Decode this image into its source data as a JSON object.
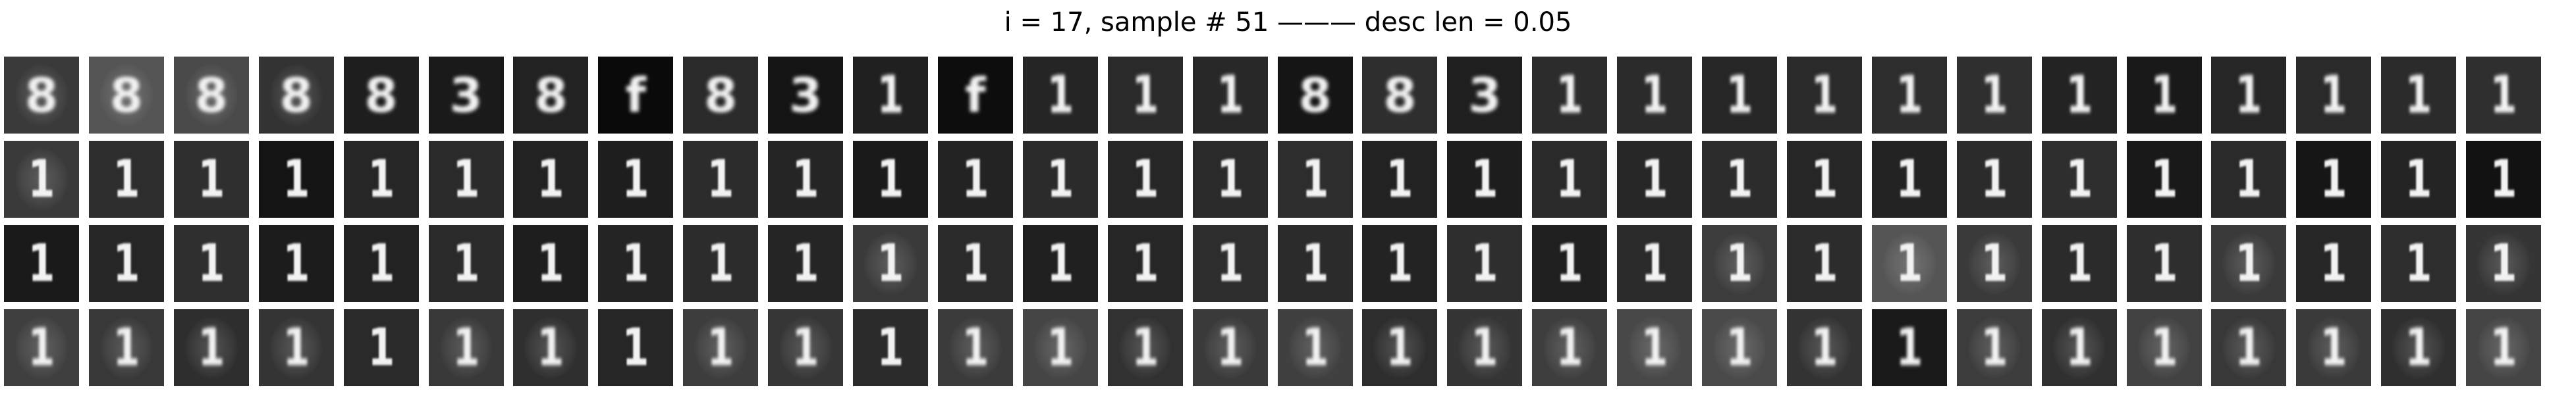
{
  "figure": {
    "title": "i = 17, sample # 51 ——— desc len = 0.05",
    "rows": 4,
    "cols": 30,
    "tiles": [
      [
        {
          "digit": "8",
          "bg": "#3a3a3a",
          "blur": 2,
          "halo": true
        },
        {
          "digit": "8",
          "bg": "#555555",
          "blur": 2,
          "halo": true
        },
        {
          "digit": "8",
          "bg": "#4a4a4a",
          "blur": 2,
          "halo": true
        },
        {
          "digit": "8",
          "bg": "#333333",
          "blur": 2,
          "halo": true
        },
        {
          "digit": "8",
          "bg": "#1e1e1e",
          "blur": 2,
          "halo": false
        },
        {
          "digit": "3",
          "bg": "#1a1a1a",
          "blur": 2,
          "halo": false
        },
        {
          "digit": "8",
          "bg": "#222222",
          "blur": 2,
          "halo": false
        },
        {
          "digit": "f",
          "bg": "#0a0a0a",
          "blur": 2,
          "halo": false
        },
        {
          "digit": "8",
          "bg": "#2a2a2a",
          "blur": 2,
          "halo": false
        },
        {
          "digit": "3",
          "bg": "#141414",
          "blur": 2,
          "halo": false
        },
        {
          "digit": "1",
          "bg": "#202020",
          "blur": 2,
          "halo": false
        },
        {
          "digit": "f",
          "bg": "#0d0d0d",
          "blur": 2,
          "halo": false
        },
        {
          "digit": "1",
          "bg": "#252525",
          "blur": 2,
          "halo": false
        },
        {
          "digit": "1",
          "bg": "#2a2a2a",
          "blur": 2,
          "halo": false
        },
        {
          "digit": "1",
          "bg": "#282828",
          "blur": 2,
          "halo": false
        },
        {
          "digit": "8",
          "bg": "#151515",
          "blur": 2,
          "halo": false
        },
        {
          "digit": "8",
          "bg": "#2e2e2e",
          "blur": 2,
          "halo": false
        },
        {
          "digit": "3",
          "bg": "#1f1f1f",
          "blur": 2,
          "halo": false
        },
        {
          "digit": "1",
          "bg": "#2c2c2c",
          "blur": 2,
          "halo": false
        },
        {
          "digit": "1",
          "bg": "#2b2b2b",
          "blur": 2,
          "halo": false
        },
        {
          "digit": "1",
          "bg": "#262626",
          "blur": 2,
          "halo": false
        },
        {
          "digit": "1",
          "bg": "#2a2a2a",
          "blur": 2,
          "halo": false
        },
        {
          "digit": "1",
          "bg": "#2d2d2d",
          "blur": 2,
          "halo": false
        },
        {
          "digit": "1",
          "bg": "#2f2f2f",
          "blur": 2,
          "halo": false
        },
        {
          "digit": "1",
          "bg": "#232323",
          "blur": 2,
          "halo": false
        },
        {
          "digit": "1",
          "bg": "#191919",
          "blur": 2,
          "halo": false
        },
        {
          "digit": "1",
          "bg": "#262626",
          "blur": 2,
          "halo": false
        },
        {
          "digit": "1",
          "bg": "#2a2a2a",
          "blur": 2,
          "halo": false
        },
        {
          "digit": "1",
          "bg": "#2b2b2b",
          "blur": 2,
          "halo": false
        },
        {
          "digit": "1",
          "bg": "#2f2f2f",
          "blur": 2,
          "halo": false
        }
      ],
      [
        {
          "digit": "1",
          "bg": "#3a3a3a",
          "blur": 1,
          "halo": true
        },
        {
          "digit": "1",
          "bg": "#2d2d2d",
          "blur": 1,
          "halo": false
        },
        {
          "digit": "1",
          "bg": "#2f2f2f",
          "blur": 1,
          "halo": false
        },
        {
          "digit": "1",
          "bg": "#141414",
          "blur": 1,
          "halo": false
        },
        {
          "digit": "1",
          "bg": "#262626",
          "blur": 1,
          "halo": false
        },
        {
          "digit": "1",
          "bg": "#2a2a2a",
          "blur": 1,
          "halo": false
        },
        {
          "digit": "1",
          "bg": "#222222",
          "blur": 1,
          "halo": false
        },
        {
          "digit": "1",
          "bg": "#1e1e1e",
          "blur": 1,
          "halo": false
        },
        {
          "digit": "1",
          "bg": "#2c2c2c",
          "blur": 1,
          "halo": false
        },
        {
          "digit": "1",
          "bg": "#252525",
          "blur": 1,
          "halo": false
        },
        {
          "digit": "1",
          "bg": "#1a1a1a",
          "blur": 1,
          "halo": false
        },
        {
          "digit": "1",
          "bg": "#232323",
          "blur": 1,
          "halo": false
        },
        {
          "digit": "1",
          "bg": "#2b2b2b",
          "blur": 1,
          "halo": false
        },
        {
          "digit": "1",
          "bg": "#262626",
          "blur": 1,
          "halo": false
        },
        {
          "digit": "1",
          "bg": "#2a2a2a",
          "blur": 1,
          "halo": false
        },
        {
          "digit": "1",
          "bg": "#2d2d2d",
          "blur": 1,
          "halo": false
        },
        {
          "digit": "1",
          "bg": "#222222",
          "blur": 1,
          "halo": false
        },
        {
          "digit": "1",
          "bg": "#1d1d1d",
          "blur": 1,
          "halo": false
        },
        {
          "digit": "1",
          "bg": "#2a2a2a",
          "blur": 1,
          "halo": false
        },
        {
          "digit": "1",
          "bg": "#272727",
          "blur": 1,
          "halo": false
        },
        {
          "digit": "1",
          "bg": "#2c2c2c",
          "blur": 1,
          "halo": false
        },
        {
          "digit": "1",
          "bg": "#262626",
          "blur": 1,
          "halo": false
        },
        {
          "digit": "1",
          "bg": "#232323",
          "blur": 1,
          "halo": false
        },
        {
          "digit": "1",
          "bg": "#2b2b2b",
          "blur": 1,
          "halo": false
        },
        {
          "digit": "1",
          "bg": "#2e2e2e",
          "blur": 1,
          "halo": false
        },
        {
          "digit": "1",
          "bg": "#191919",
          "blur": 1,
          "halo": false
        },
        {
          "digit": "1",
          "bg": "#2a2a2a",
          "blur": 1,
          "halo": false
        },
        {
          "digit": "1",
          "bg": "#161616",
          "blur": 1,
          "halo": false
        },
        {
          "digit": "1",
          "bg": "#242424",
          "blur": 1,
          "halo": false
        },
        {
          "digit": "1",
          "bg": "#121212",
          "blur": 1,
          "halo": false
        }
      ],
      [
        {
          "digit": "1",
          "bg": "#1a1a1a",
          "blur": 1,
          "halo": false
        },
        {
          "digit": "1",
          "bg": "#262626",
          "blur": 1,
          "halo": false
        },
        {
          "digit": "1",
          "bg": "#2f2f2f",
          "blur": 1,
          "halo": false
        },
        {
          "digit": "1",
          "bg": "#1c1c1c",
          "blur": 1,
          "halo": false
        },
        {
          "digit": "1",
          "bg": "#222222",
          "blur": 1,
          "halo": false
        },
        {
          "digit": "1",
          "bg": "#2a2a2a",
          "blur": 1,
          "halo": false
        },
        {
          "digit": "1",
          "bg": "#1e1e1e",
          "blur": 1,
          "halo": false
        },
        {
          "digit": "1",
          "bg": "#242424",
          "blur": 1,
          "halo": false
        },
        {
          "digit": "1",
          "bg": "#2c2c2c",
          "blur": 1,
          "halo": false
        },
        {
          "digit": "1",
          "bg": "#252525",
          "blur": 1,
          "halo": false
        },
        {
          "digit": "1",
          "bg": "#3a3a3a",
          "blur": 1,
          "halo": true
        },
        {
          "digit": "1",
          "bg": "#2a2a2a",
          "blur": 1,
          "halo": false
        },
        {
          "digit": "1",
          "bg": "#202020",
          "blur": 1,
          "halo": false
        },
        {
          "digit": "1",
          "bg": "#262626",
          "blur": 1,
          "halo": false
        },
        {
          "digit": "1",
          "bg": "#2d2d2d",
          "blur": 1,
          "halo": false
        },
        {
          "digit": "1",
          "bg": "#2b2b2b",
          "blur": 1,
          "halo": false
        },
        {
          "digit": "1",
          "bg": "#232323",
          "blur": 1,
          "halo": false
        },
        {
          "digit": "1",
          "bg": "#2e2e2e",
          "blur": 1,
          "halo": false
        },
        {
          "digit": "1",
          "bg": "#1f1f1f",
          "blur": 1,
          "halo": false
        },
        {
          "digit": "1",
          "bg": "#2a2a2a",
          "blur": 1,
          "halo": false
        },
        {
          "digit": "1",
          "bg": "#3c3c3c",
          "blur": 1,
          "halo": true
        },
        {
          "digit": "1",
          "bg": "#2c2c2c",
          "blur": 1,
          "halo": false
        },
        {
          "digit": "1",
          "bg": "#555555",
          "blur": 1,
          "halo": true
        },
        {
          "digit": "1",
          "bg": "#3a3a3a",
          "blur": 1,
          "halo": true
        },
        {
          "digit": "1",
          "bg": "#2b2b2b",
          "blur": 1,
          "halo": false
        },
        {
          "digit": "1",
          "bg": "#2e2e2e",
          "blur": 1,
          "halo": false
        },
        {
          "digit": "1",
          "bg": "#3a3a3a",
          "blur": 1,
          "halo": true
        },
        {
          "digit": "1",
          "bg": "#262626",
          "blur": 1,
          "halo": false
        },
        {
          "digit": "1",
          "bg": "#2d2d2d",
          "blur": 1,
          "halo": false
        },
        {
          "digit": "1",
          "bg": "#353535",
          "blur": 1,
          "halo": true
        }
      ],
      [
        {
          "digit": "1",
          "bg": "#3f3f3f",
          "blur": 2,
          "halo": true
        },
        {
          "digit": "1",
          "bg": "#383838",
          "blur": 2,
          "halo": true
        },
        {
          "digit": "1",
          "bg": "#2e2e2e",
          "blur": 2,
          "halo": true
        },
        {
          "digit": "1",
          "bg": "#343434",
          "blur": 2,
          "halo": true
        },
        {
          "digit": "1",
          "bg": "#2a2a2a",
          "blur": 1,
          "halo": false
        },
        {
          "digit": "1",
          "bg": "#393939",
          "blur": 2,
          "halo": true
        },
        {
          "digit": "1",
          "bg": "#2f2f2f",
          "blur": 2,
          "halo": true
        },
        {
          "digit": "1",
          "bg": "#262626",
          "blur": 1,
          "halo": false
        },
        {
          "digit": "1",
          "bg": "#3d3d3d",
          "blur": 2,
          "halo": true
        },
        {
          "digit": "1",
          "bg": "#363636",
          "blur": 2,
          "halo": true
        },
        {
          "digit": "1",
          "bg": "#2b2b2b",
          "blur": 1,
          "halo": false
        },
        {
          "digit": "1",
          "bg": "#3b3b3b",
          "blur": 2,
          "halo": true
        },
        {
          "digit": "1",
          "bg": "#454545",
          "blur": 2,
          "halo": true
        },
        {
          "digit": "1",
          "bg": "#313131",
          "blur": 2,
          "halo": true
        },
        {
          "digit": "1",
          "bg": "#3a3a3a",
          "blur": 2,
          "halo": true
        },
        {
          "digit": "1",
          "bg": "#404040",
          "blur": 2,
          "halo": true
        },
        {
          "digit": "1",
          "bg": "#2d2d2d",
          "blur": 2,
          "halo": true
        },
        {
          "digit": "1",
          "bg": "#353535",
          "blur": 2,
          "halo": true
        },
        {
          "digit": "1",
          "bg": "#3e3e3e",
          "blur": 2,
          "halo": true
        },
        {
          "digit": "1",
          "bg": "#484848",
          "blur": 2,
          "halo": true
        },
        {
          "digit": "1",
          "bg": "#4a4a4a",
          "blur": 2,
          "halo": true
        },
        {
          "digit": "1",
          "bg": "#333333",
          "blur": 2,
          "halo": true
        },
        {
          "digit": "1",
          "bg": "#1a1a1a",
          "blur": 2,
          "halo": false
        },
        {
          "digit": "1",
          "bg": "#3c3c3c",
          "blur": 2,
          "halo": true
        },
        {
          "digit": "1",
          "bg": "#303030",
          "blur": 2,
          "halo": true
        },
        {
          "digit": "1",
          "bg": "#424242",
          "blur": 2,
          "halo": true
        },
        {
          "digit": "1",
          "bg": "#383838",
          "blur": 2,
          "halo": true
        },
        {
          "digit": "1",
          "bg": "#3a3a3a",
          "blur": 2,
          "halo": true
        },
        {
          "digit": "1",
          "bg": "#2f2f2f",
          "blur": 2,
          "halo": true
        },
        {
          "digit": "1",
          "bg": "#454545",
          "blur": 2,
          "halo": true
        }
      ]
    ]
  }
}
